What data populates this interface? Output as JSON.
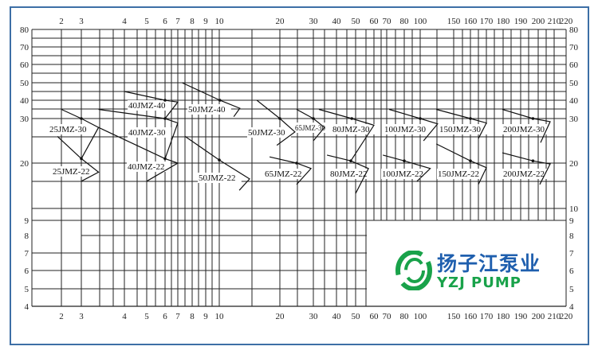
{
  "chart_data": {
    "type": "line",
    "title": "",
    "xlabel": "",
    "ylabel": "",
    "x_ticks": [
      2,
      3,
      4,
      5,
      6,
      7,
      8,
      9,
      10,
      20,
      30,
      40,
      50,
      60,
      70,
      80,
      100,
      150,
      160,
      170,
      180,
      190,
      200,
      210,
      220
    ],
    "y_ticks_left": [
      80,
      70,
      60,
      50,
      40,
      30,
      20,
      9,
      8,
      7,
      6,
      5,
      4
    ],
    "y_ticks_right": [
      80,
      70,
      60,
      50,
      40,
      30,
      20,
      10,
      9,
      8,
      7,
      6,
      5,
      4
    ],
    "xlim": [
      2,
      220
    ],
    "ylim": [
      4,
      80
    ],
    "grid": true,
    "series": [
      {
        "name": "25JMZ-30",
        "points": [
          [
            2,
            35
          ],
          [
            3,
            30
          ],
          [
            3.4,
            28
          ],
          [
            3,
            21
          ]
        ],
        "rated": [
          3,
          30
        ]
      },
      {
        "name": "25JMZ-22",
        "points": [
          [
            1.8,
            26
          ],
          [
            3,
            21
          ],
          [
            3.4,
            18
          ],
          [
            3,
            16
          ]
        ],
        "rated": [
          3,
          21
        ]
      },
      {
        "name": "40JMZ-40",
        "points": [
          [
            4,
            45
          ],
          [
            6,
            40
          ],
          [
            7,
            39
          ],
          [
            6,
            30
          ]
        ],
        "rated": [
          6,
          40
        ]
      },
      {
        "name": "40JMZ-30",
        "points": [
          [
            3.4,
            35
          ],
          [
            6,
            30
          ],
          [
            7,
            29
          ],
          [
            6,
            21
          ]
        ],
        "rated": [
          6,
          30
        ]
      },
      {
        "name": "40JMZ-22",
        "points": [
          [
            3.4,
            28
          ],
          [
            6,
            21
          ],
          [
            7,
            20
          ],
          [
            5,
            16
          ]
        ],
        "rated": [
          6,
          21
        ]
      },
      {
        "name": "50JMZ-40",
        "points": [
          [
            7.3,
            50
          ],
          [
            10.1,
            40
          ],
          [
            13.4,
            35.6
          ],
          [
            12.4,
            31
          ]
        ],
        "rated": [
          10.1,
          40
        ]
      },
      {
        "name": "50JMZ-22",
        "points": [
          [
            7.5,
            26
          ],
          [
            10,
            20.7
          ],
          [
            15,
            16.5
          ],
          [
            13.3,
            14
          ]
        ],
        "rated": [
          10,
          20.7
        ]
      },
      {
        "name": "50JMZ-30",
        "points": [
          [
            16.2,
            40
          ],
          [
            20,
            30
          ],
          [
            24.5,
            27
          ],
          [
            19.5,
            24
          ]
        ],
        "rated": [
          20,
          30
        ]
      },
      {
        "name": "65JMZ-30",
        "points": [
          [
            25,
            35
          ],
          [
            30,
            30
          ],
          [
            34.8,
            28
          ],
          [
            30,
            25
          ]
        ],
        "rated": [
          30,
          30
        ]
      },
      {
        "name": "65JMZ-22",
        "points": [
          [
            18.3,
            21.4
          ],
          [
            25,
            20
          ],
          [
            29.3,
            18.8
          ],
          [
            25,
            15.3
          ]
        ],
        "rated": [
          25,
          20
        ]
      },
      {
        "name": "80JMZ-30",
        "points": [
          [
            32.4,
            35
          ],
          [
            48,
            30
          ],
          [
            60,
            28.5
          ],
          [
            47.5,
            20.5
          ]
        ],
        "rated": [
          48,
          30
        ]
      },
      {
        "name": "80JMZ-22",
        "points": [
          [
            35.9,
            21.8
          ],
          [
            47.5,
            20.5
          ],
          [
            57,
            18.8
          ],
          [
            50,
            13.3
          ]
        ],
        "rated": [
          47.5,
          20.5
        ]
      },
      {
        "name": "100JMZ-30",
        "points": [
          [
            71.4,
            35
          ],
          [
            100,
            30
          ],
          [
            126,
            28.8
          ],
          [
            105,
            25
          ]
        ],
        "rated": [
          100,
          30
        ]
      },
      {
        "name": "100JMZ-22",
        "points": [
          [
            67,
            21.8
          ],
          [
            80,
            20.5
          ],
          [
            115,
            18.8
          ],
          [
            96,
            16
          ]
        ],
        "rated": [
          80,
          20.5
        ]
      },
      {
        "name": "150JMZ-30",
        "points": [
          [
            124,
            35
          ],
          [
            160,
            30
          ],
          [
            170,
            29
          ],
          [
            165,
            25.5
          ]
        ],
        "rated": [
          160,
          30
        ]
      },
      {
        "name": "150JMZ-22",
        "points": [
          [
            124,
            24.3
          ],
          [
            160,
            20.5
          ],
          [
            170,
            19
          ],
          [
            165,
            15.3
          ]
        ],
        "rated": [
          160,
          20.5
        ]
      },
      {
        "name": "200JMZ-30",
        "points": [
          [
            179.5,
            35
          ],
          [
            197,
            30
          ],
          [
            207.5,
            29.3
          ],
          [
            201.5,
            24.6
          ]
        ],
        "rated": [
          197,
          30
        ]
      },
      {
        "name": "200JMZ-22",
        "points": [
          [
            179.5,
            22.3
          ],
          [
            197,
            20.5
          ],
          [
            207.5,
            19.8
          ],
          [
            201,
            15.3
          ]
        ],
        "rated": [
          197,
          20.5
        ]
      }
    ]
  },
  "logo": {
    "cn": "扬子江泵业",
    "en": "YZJ PUMP",
    "colors": {
      "cn": "#1f5fae",
      "en": "#19a24a"
    }
  },
  "colors": {
    "frame": "#3d6fa6",
    "grid": "#222222"
  }
}
